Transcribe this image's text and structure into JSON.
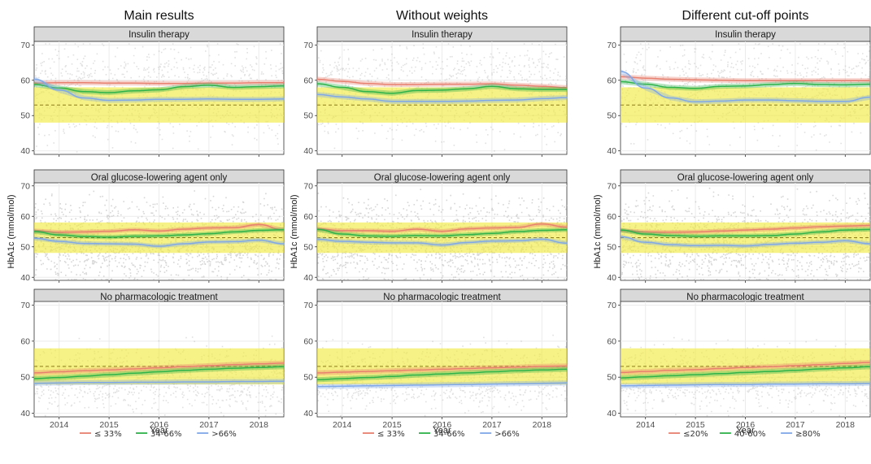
{
  "chart_data": {
    "type": "line",
    "columns": [
      {
        "title": "Main results",
        "legend": [
          {
            "label": "≤ 33%",
            "color": "#E8806F"
          },
          {
            "label": "34-66%",
            "color": "#2DB34A"
          },
          {
            "label": ">66%",
            "color": "#7FA8E8"
          }
        ]
      },
      {
        "title": "Without weights",
        "legend": [
          {
            "label": "≤ 33%",
            "color": "#E8806F"
          },
          {
            "label": "34-66%",
            "color": "#2DB34A"
          },
          {
            "label": ">66%",
            "color": "#7FA8E8"
          }
        ]
      },
      {
        "title": "Different cut-off points",
        "legend": [
          {
            "label": "≤20%",
            "color": "#E8806F"
          },
          {
            "label": "40-60%",
            "color": "#2DB34A"
          },
          {
            "label": "≥80%",
            "color": "#7FA8E8"
          }
        ]
      }
    ],
    "rows": [
      {
        "strip": "Insulin therapy",
        "target_band": [
          48,
          58
        ],
        "reference_line": 53
      },
      {
        "strip": "Oral glucose-lowering agent only",
        "target_band": [
          48,
          58
        ],
        "reference_line": 53
      },
      {
        "strip": "No pharmacologic treatment",
        "target_band": [
          48,
          58
        ],
        "reference_line": 53
      }
    ],
    "xlabel": "Year",
    "ylabel": "HbA1c (mmol/mol)",
    "xticks": [
      2014,
      2015,
      2016,
      2017,
      2018
    ],
    "yticks": [
      40,
      50,
      60,
      70
    ],
    "xlim": [
      2013.5,
      2018.5
    ],
    "ylim": [
      39,
      71
    ],
    "panels": [
      [
        {
          "series": [
            {
              "name": "≤ 33%",
              "x": [
                2013.5,
                2014,
                2014.5,
                2015,
                2015.5,
                2016,
                2016.5,
                2017,
                2017.5,
                2018,
                2018.5
              ],
              "y": [
                59.2,
                59.3,
                59.3,
                59.2,
                59.2,
                59.1,
                59.1,
                59.2,
                59.2,
                59.3,
                59.3
              ]
            },
            {
              "name": "34-66%",
              "x": [
                2013.5,
                2014,
                2014.5,
                2015,
                2015.5,
                2016,
                2016.5,
                2017,
                2017.5,
                2018,
                2018.5
              ],
              "y": [
                58.8,
                57.8,
                56.8,
                56.5,
                57.0,
                57.3,
                58.2,
                58.6,
                58.0,
                58.2,
                58.4
              ]
            },
            {
              "name": ">66%",
              "x": [
                2013.5,
                2014,
                2014.5,
                2015,
                2015.5,
                2016,
                2016.5,
                2017,
                2017.5,
                2018,
                2018.5
              ],
              "y": [
                60.3,
                57.2,
                55.0,
                54.3,
                54.4,
                54.6,
                54.6,
                54.7,
                54.6,
                54.6,
                54.7
              ]
            }
          ]
        },
        {
          "series": [
            {
              "name": "≤ 33%",
              "x": [
                2013.5,
                2014,
                2014.5,
                2015,
                2015.5,
                2016,
                2016.5,
                2017,
                2017.5,
                2018,
                2018.5
              ],
              "y": [
                60.3,
                59.7,
                59.1,
                58.8,
                58.8,
                58.9,
                58.9,
                59.0,
                58.6,
                58.3,
                57.9
              ]
            },
            {
              "name": "34-66%",
              "x": [
                2013.5,
                2014,
                2014.5,
                2015,
                2015.5,
                2016,
                2016.5,
                2017,
                2017.5,
                2018,
                2018.5
              ],
              "y": [
                59.0,
                58.0,
                56.8,
                56.3,
                57.1,
                57.2,
                57.6,
                58.3,
                57.6,
                57.4,
                57.4
              ]
            },
            {
              "name": ">66%",
              "x": [
                2013.5,
                2014,
                2014.5,
                2015,
                2015.5,
                2016,
                2016.5,
                2017,
                2017.5,
                2018,
                2018.5
              ],
              "y": [
                56.0,
                55.3,
                54.7,
                54.0,
                54.0,
                54.0,
                54.1,
                54.3,
                54.4,
                54.8,
                55.1
              ]
            }
          ]
        },
        {
          "series": [
            {
              "name": "≤20%",
              "x": [
                2013.5,
                2014,
                2014.5,
                2015,
                2015.5,
                2016,
                2016.5,
                2017,
                2017.5,
                2018,
                2018.5
              ],
              "y": [
                61.0,
                60.6,
                60.3,
                60.1,
                60.0,
                59.9,
                59.9,
                59.9,
                59.9,
                59.9,
                59.9
              ]
            },
            {
              "name": "40-60%",
              "x": [
                2013.5,
                2014,
                2014.5,
                2015,
                2015.5,
                2016,
                2016.5,
                2017,
                2017.5,
                2018,
                2018.5
              ],
              "y": [
                59.6,
                58.9,
                58.0,
                57.7,
                58.3,
                58.4,
                58.8,
                59.1,
                58.8,
                58.7,
                58.9
              ]
            },
            {
              "name": "≥80%",
              "x": [
                2013.5,
                2014,
                2014.5,
                2015,
                2015.5,
                2016,
                2016.5,
                2017,
                2017.5,
                2018,
                2018.5
              ],
              "y": [
                62.5,
                57.8,
                55.0,
                53.9,
                54.1,
                54.4,
                54.4,
                54.2,
                54.0,
                54.0,
                55.2
              ]
            }
          ]
        }
      ],
      [
        {
          "series": [
            {
              "name": "≤ 33%",
              "x": [
                2013.5,
                2014,
                2014.5,
                2015,
                2015.5,
                2016,
                2016.5,
                2017,
                2017.5,
                2018,
                2018.5
              ],
              "y": [
                55.3,
                54.8,
                54.9,
                55.1,
                55.6,
                55.2,
                55.8,
                56.2,
                56.3,
                57.3,
                55.6
              ]
            },
            {
              "name": "34-66%",
              "x": [
                2013.5,
                2014,
                2014.5,
                2015,
                2015.5,
                2016,
                2016.5,
                2017,
                2017.5,
                2018,
                2018.5
              ],
              "y": [
                55.0,
                53.9,
                53.4,
                53.2,
                53.5,
                53.6,
                53.9,
                54.3,
                54.9,
                55.4,
                55.6
              ]
            },
            {
              "name": ">66%",
              "x": [
                2013.5,
                2014,
                2014.5,
                2015,
                2015.5,
                2016,
                2016.5,
                2017,
                2017.5,
                2018,
                2018.5
              ],
              "y": [
                52.8,
                51.8,
                51.1,
                51.0,
                50.9,
                50.2,
                51.0,
                51.6,
                51.7,
                52.2,
                51.0
              ]
            }
          ]
        },
        {
          "series": [
            {
              "name": "≤ 33%",
              "x": [
                2013.5,
                2014,
                2014.5,
                2015,
                2015.5,
                2016,
                2016.5,
                2017,
                2017.5,
                2018,
                2018.5
              ],
              "y": [
                55.9,
                55.3,
                55.3,
                55.1,
                55.8,
                55.1,
                55.9,
                56.2,
                56.4,
                57.5,
                56.5
              ]
            },
            {
              "name": "34-66%",
              "x": [
                2013.5,
                2014,
                2014.5,
                2015,
                2015.5,
                2016,
                2016.5,
                2017,
                2017.5,
                2018,
                2018.5
              ],
              "y": [
                55.7,
                54.2,
                53.6,
                53.5,
                53.7,
                53.6,
                54.0,
                54.4,
                55.0,
                55.4,
                55.6
              ]
            },
            {
              "name": ">66%",
              "x": [
                2013.5,
                2014,
                2014.5,
                2015,
                2015.5,
                2016,
                2016.5,
                2017,
                2017.5,
                2018,
                2018.5
              ],
              "y": [
                52.5,
                51.8,
                51.5,
                51.3,
                51.3,
                50.6,
                51.4,
                51.9,
                52.0,
                52.5,
                51.2
              ]
            }
          ]
        },
        {
          "series": [
            {
              "name": "≤20%",
              "x": [
                2013.5,
                2014,
                2014.5,
                2015,
                2015.5,
                2016,
                2016.5,
                2017,
                2017.5,
                2018,
                2018.5
              ],
              "y": [
                55.4,
                54.9,
                54.8,
                54.9,
                55.2,
                55.5,
                55.8,
                56.2,
                56.6,
                56.8,
                57.0
              ]
            },
            {
              "name": "40-60%",
              "x": [
                2013.5,
                2014,
                2014.5,
                2015,
                2015.5,
                2016,
                2016.5,
                2017,
                2017.5,
                2018,
                2018.5
              ],
              "y": [
                55.5,
                54.2,
                53.7,
                53.5,
                53.6,
                53.6,
                53.7,
                54.2,
                54.9,
                55.5,
                55.7
              ]
            },
            {
              "name": "≥80%",
              "x": [
                2013.5,
                2014,
                2014.5,
                2015,
                2015.5,
                2016,
                2016.5,
                2017,
                2017.5,
                2018,
                2018.5
              ],
              "y": [
                53.3,
                51.5,
                50.7,
                50.4,
                50.5,
                50.3,
                50.8,
                51.2,
                51.5,
                52.0,
                51.0
              ]
            }
          ]
        }
      ],
      [
        {
          "series": [
            {
              "name": "≤ 33%",
              "x": [
                2013.5,
                2014,
                2014.5,
                2015,
                2015.5,
                2016,
                2016.5,
                2017,
                2017.5,
                2018,
                2018.5
              ],
              "y": [
                51.2,
                51.5,
                51.8,
                52.0,
                52.3,
                52.6,
                52.9,
                53.2,
                53.5,
                53.7,
                53.9
              ]
            },
            {
              "name": "34-66%",
              "x": [
                2013.5,
                2014,
                2014.5,
                2015,
                2015.5,
                2016,
                2016.5,
                2017,
                2017.5,
                2018,
                2018.5
              ],
              "y": [
                49.6,
                49.9,
                50.3,
                50.7,
                51.1,
                51.5,
                51.9,
                52.2,
                52.5,
                52.7,
                52.9
              ]
            },
            {
              "name": ">66%",
              "x": [
                2013.5,
                2014,
                2014.5,
                2015,
                2015.5,
                2016,
                2016.5,
                2017,
                2017.5,
                2018,
                2018.5
              ],
              "y": [
                48.3,
                48.4,
                48.5,
                48.5,
                48.6,
                48.6,
                48.7,
                48.7,
                48.8,
                48.8,
                48.9
              ]
            }
          ]
        },
        {
          "series": [
            {
              "name": "≤ 33%",
              "x": [
                2013.5,
                2014,
                2014.5,
                2015,
                2015.5,
                2016,
                2016.5,
                2017,
                2017.5,
                2018,
                2018.5
              ],
              "y": [
                51.2,
                51.4,
                51.6,
                51.8,
                52.0,
                52.2,
                52.4,
                52.6,
                52.8,
                53.0,
                53.1
              ]
            },
            {
              "name": "34-66%",
              "x": [
                2013.5,
                2014,
                2014.5,
                2015,
                2015.5,
                2016,
                2016.5,
                2017,
                2017.5,
                2018,
                2018.5
              ],
              "y": [
                49.3,
                49.6,
                49.9,
                50.2,
                50.6,
                50.9,
                51.2,
                51.5,
                51.8,
                52.0,
                52.2
              ]
            },
            {
              "name": ">66%",
              "x": [
                2013.5,
                2014,
                2014.5,
                2015,
                2015.5,
                2016,
                2016.5,
                2017,
                2017.5,
                2018,
                2018.5
              ],
              "y": [
                47.4,
                47.5,
                47.6,
                47.7,
                47.8,
                47.9,
                48.0,
                48.1,
                48.2,
                48.3,
                48.4
              ]
            }
          ]
        },
        {
          "series": [
            {
              "name": "≤20%",
              "x": [
                2013.5,
                2014,
                2014.5,
                2015,
                2015.5,
                2016,
                2016.5,
                2017,
                2017.5,
                2018,
                2018.5
              ],
              "y": [
                51.3,
                51.6,
                51.9,
                52.1,
                52.4,
                52.7,
                52.9,
                53.2,
                53.5,
                53.8,
                54.1
              ]
            },
            {
              "name": "40-60%",
              "x": [
                2013.5,
                2014,
                2014.5,
                2015,
                2015.5,
                2016,
                2016.5,
                2017,
                2017.5,
                2018,
                2018.5
              ],
              "y": [
                49.8,
                50.1,
                50.4,
                50.7,
                51.0,
                51.3,
                51.6,
                51.9,
                52.3,
                52.6,
                52.9
              ]
            },
            {
              "name": "≥80%",
              "x": [
                2013.5,
                2014,
                2014.5,
                2015,
                2015.5,
                2016,
                2016.5,
                2017,
                2017.5,
                2018,
                2018.5
              ],
              "y": [
                47.6,
                47.7,
                47.8,
                47.9,
                48.0,
                48.0,
                48.1,
                48.1,
                48.2,
                48.2,
                48.3
              ]
            }
          ]
        }
      ]
    ]
  }
}
